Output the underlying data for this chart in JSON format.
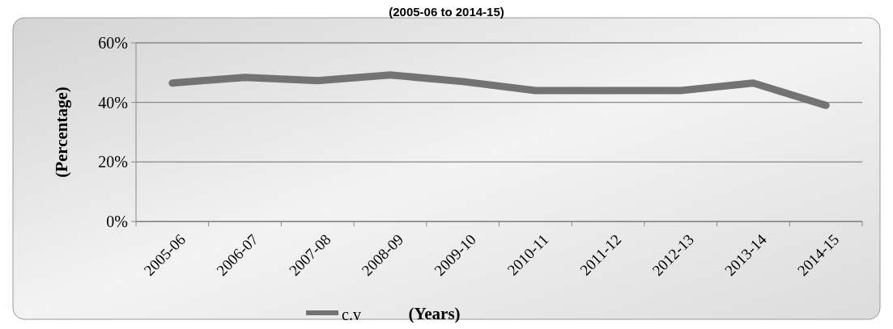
{
  "chart_data": {
    "type": "line",
    "title": "(2005-06 to 2014-15)",
    "xlabel": "(Years)",
    "ylabel": "(Percentage)",
    "categories": [
      "2005-06",
      "2006-07",
      "2007-08",
      "2008-09",
      "2009-10",
      "2010-11",
      "2011-12",
      "2012-13",
      "2013-14",
      "2014-15"
    ],
    "series": [
      {
        "name": "c.v",
        "color": "#737373",
        "values": [
          46.5,
          48.4,
          47.3,
          49.2,
          47,
          44,
          44,
          44,
          46.5,
          39
        ]
      }
    ],
    "ylim": [
      0,
      60
    ],
    "yticks": [
      {
        "value": 0,
        "label": "0%"
      },
      {
        "value": 20,
        "label": "20%"
      },
      {
        "value": 40,
        "label": "40%"
      },
      {
        "value": 60,
        "label": "60%"
      }
    ],
    "grid": "y",
    "legend": "bottom",
    "marker": "none",
    "line_style": "solid"
  }
}
